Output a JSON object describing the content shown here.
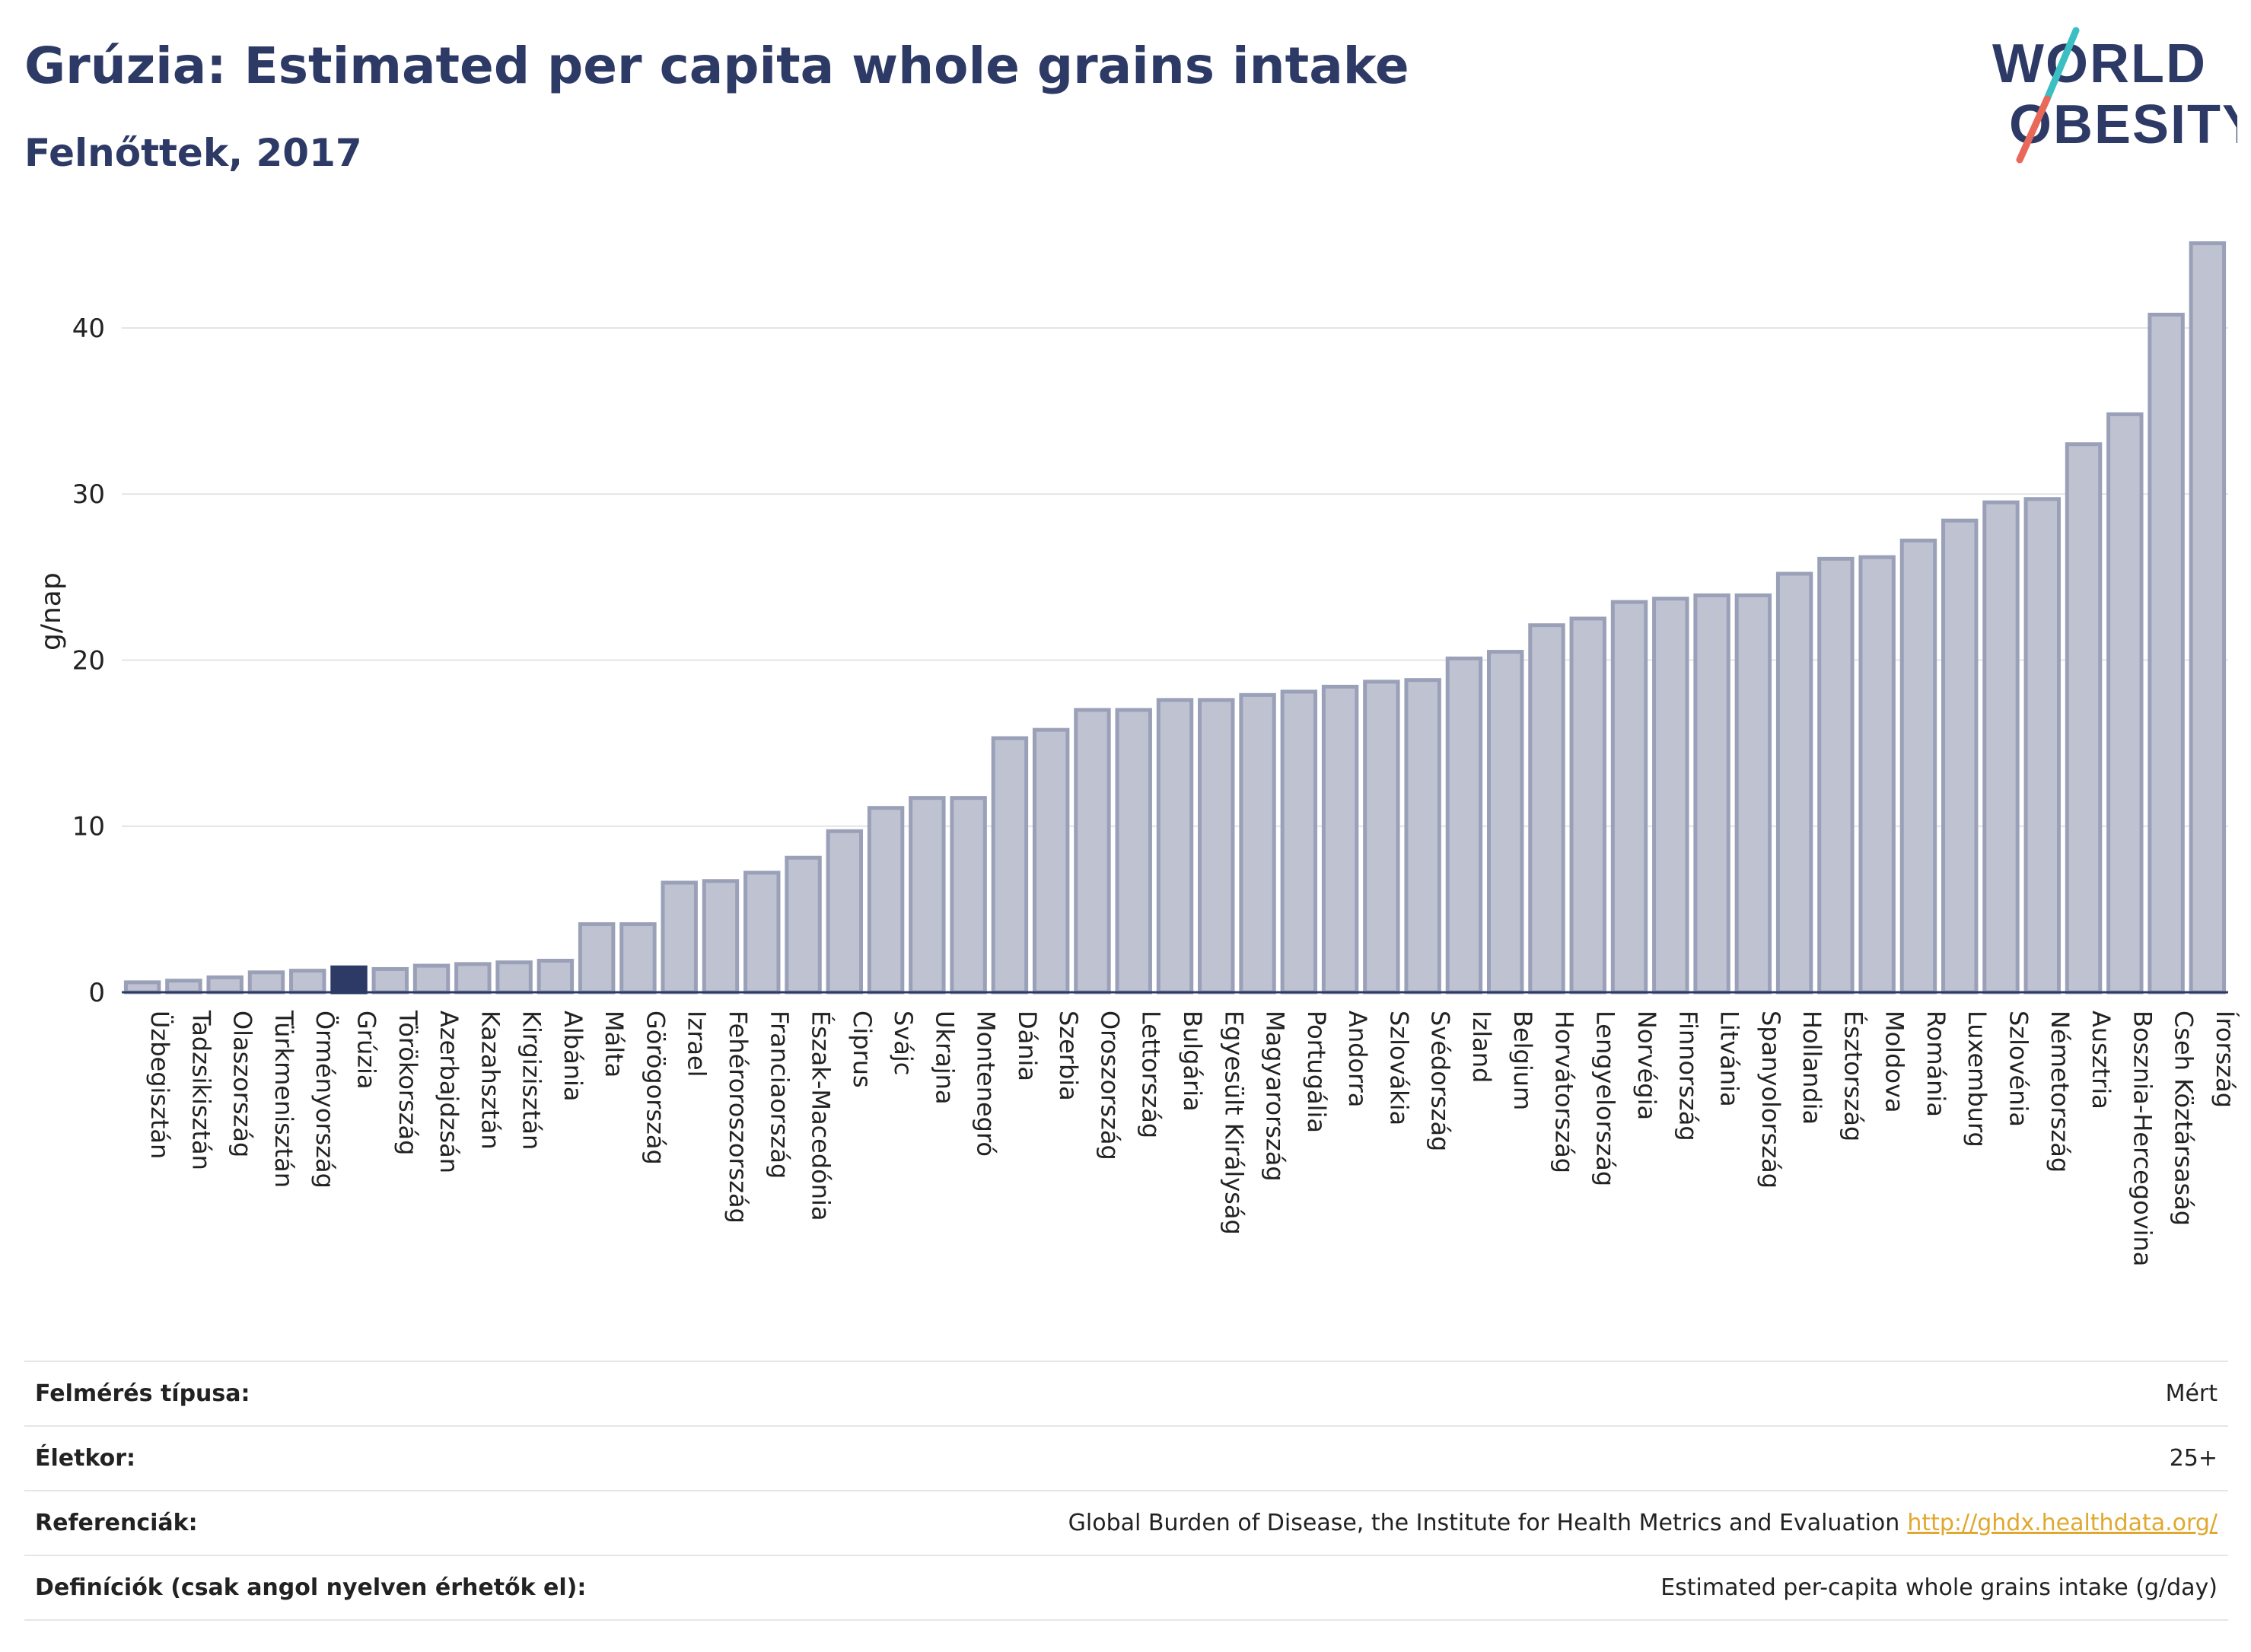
{
  "header": {
    "title": "Grúzia: Estimated per capita whole grains intake",
    "subtitle": "Felnőttek, 2017"
  },
  "logo": {
    "line1": "WORLD",
    "line2": "OBESITY"
  },
  "colors": {
    "bar": "#bfc2d1",
    "bar_stroke": "#9aa0b8",
    "highlight": "#2e3a66",
    "title": "#2e3a66",
    "grid": "#e4e4e8",
    "link": "#e0a82e",
    "logo_teal": "#3cbfc3",
    "logo_coral": "#e8685a"
  },
  "chart_data": {
    "type": "bar",
    "ylabel": "g/nap",
    "ylim": [
      0,
      46
    ],
    "yticks": [
      0,
      10,
      20,
      30,
      40
    ],
    "grid": true,
    "highlight": "Grúzia",
    "categories": [
      "Üzbegisztán",
      "Tadzsikisztán",
      "Olaszország",
      "Türkmenisztán",
      "Örményország",
      "Grúzia",
      "Törökország",
      "Azerbajdzsán",
      "Kazahsztán",
      "Kirgizisztán",
      "Albánia",
      "Málta",
      "Görögország",
      "Izrael",
      "Fehéroroszország",
      "Franciaország",
      "Észak-Macedónia",
      "Ciprus",
      "Svájc",
      "Ukrajna",
      "Montenegró",
      "Dánia",
      "Szerbia",
      "Oroszország",
      "Lettország",
      "Bulgária",
      "Egyesült Királyság",
      "Magyarország",
      "Portugália",
      "Andorra",
      "Szlovákia",
      "Svédország",
      "Izland",
      "Belgium",
      "Horvátország",
      "Lengyelország",
      "Norvégia",
      "Finnország",
      "Litvánia",
      "Spanyolország",
      "Hollandia",
      "Észtország",
      "Moldova",
      "Románia",
      "Luxemburg",
      "Szlovénia",
      "Németország",
      "Ausztria",
      "Bosznia-Hercegovina",
      "Cseh Köztársaság",
      "Írország"
    ],
    "values": [
      0.6,
      0.7,
      0.9,
      1.2,
      1.3,
      1.5,
      1.4,
      1.6,
      1.7,
      1.8,
      1.9,
      4.1,
      4.1,
      6.6,
      6.7,
      7.2,
      8.1,
      9.7,
      11.1,
      11.7,
      11.7,
      15.3,
      15.8,
      17.0,
      17.0,
      17.6,
      17.6,
      17.9,
      18.1,
      18.4,
      18.7,
      18.8,
      20.1,
      20.5,
      22.1,
      22.5,
      23.5,
      23.7,
      23.9,
      23.9,
      25.2,
      26.1,
      26.2,
      27.2,
      28.4,
      29.5,
      29.7,
      33.0,
      34.8,
      40.8,
      45.1
    ]
  },
  "meta": {
    "rows": [
      {
        "label": "Felmérés típusa:",
        "value": "Mért"
      },
      {
        "label": "Életkor:",
        "value": "25+"
      },
      {
        "label": "Referenciák:",
        "value": "Global Burden of Disease, the Institute for Health Metrics and Evaluation",
        "link": "http://ghdx.healthdata.org/"
      },
      {
        "label": "Definíciók (csak angol nyelven érhetők el):",
        "value": "Estimated per-capita whole grains intake (g/day)"
      }
    ]
  }
}
